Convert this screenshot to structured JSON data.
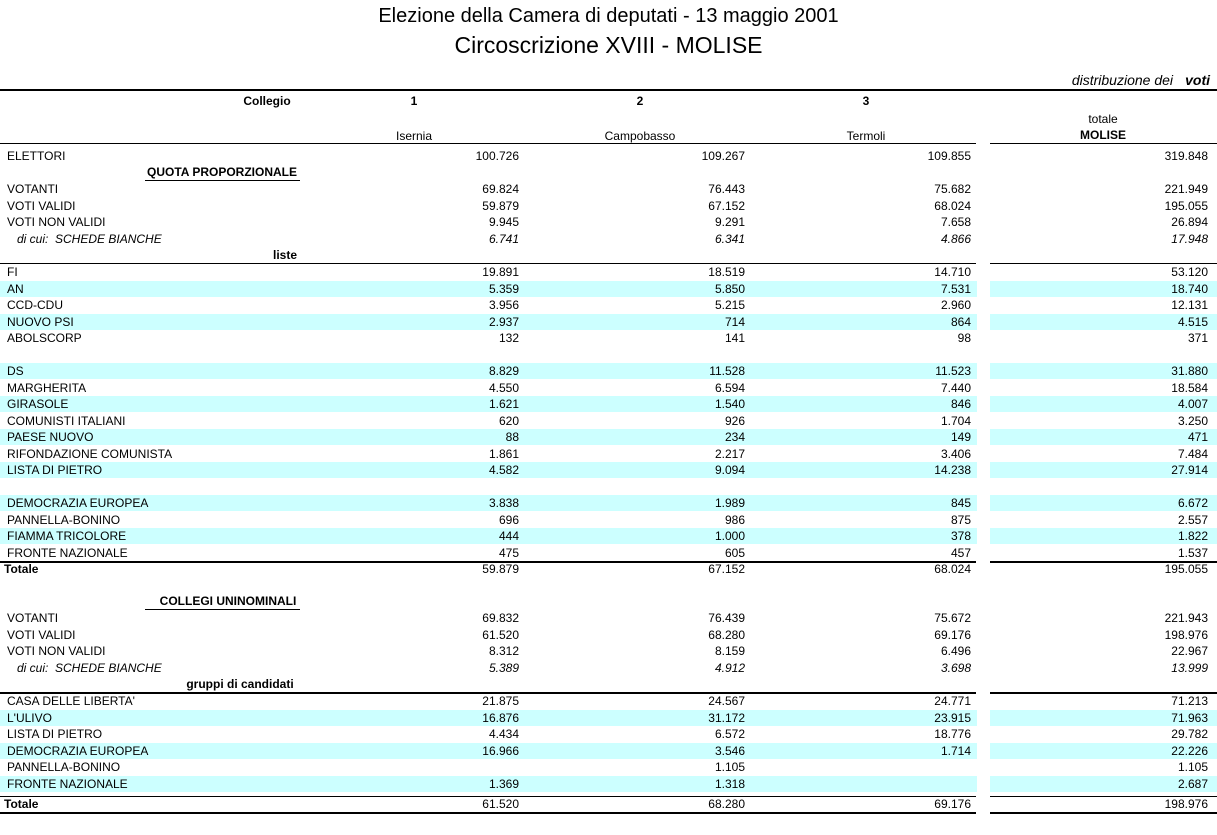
{
  "header": {
    "title": "Elezione della Camera di deputati  -  13 maggio 2001",
    "subtitle": "Circoscrizione XVIII - MOLISE",
    "note": "distribuzione dei",
    "note_unit": "voti"
  },
  "columns": {
    "label": "Collegio",
    "numbers": [
      "1",
      "2",
      "3"
    ],
    "names": [
      "Isernia",
      "Campobasso",
      "Termoli"
    ],
    "total_label": "totale",
    "total_name": "MOLISE"
  },
  "elettori": [
    "ELETTORI",
    "100.726",
    "109.267",
    "109.855",
    "319.848"
  ],
  "proporzionale": {
    "heading": "QUOTA PROPORZIONALE",
    "rows": [
      [
        "VOTANTI",
        "69.824",
        "76.443",
        "75.682",
        "221.949"
      ],
      [
        "VOTI VALIDI",
        "59.879",
        "67.152",
        "68.024",
        "195.055"
      ],
      [
        "VOTI NON VALIDI",
        "9.945",
        "9.291",
        "7.658",
        "26.894"
      ]
    ],
    "di_cui": [
      "di cui:  SCHEDE BIANCHE",
      "6.741",
      "6.341",
      "4.866",
      "17.948"
    ],
    "lists_heading": "liste",
    "lists": [
      [
        [
          "FI",
          "19.891",
          "18.519",
          "14.710",
          "53.120"
        ],
        [
          "AN",
          "5.359",
          "5.850",
          "7.531",
          "18.740"
        ],
        [
          "CCD-CDU",
          "3.956",
          "5.215",
          "2.960",
          "12.131"
        ],
        [
          "NUOVO PSI",
          "2.937",
          "714",
          "864",
          "4.515"
        ],
        [
          "ABOLSCORP",
          "132",
          "141",
          "98",
          "371"
        ]
      ],
      [
        [
          "DS",
          "8.829",
          "11.528",
          "11.523",
          "31.880"
        ],
        [
          "MARGHERITA",
          "4.550",
          "6.594",
          "7.440",
          "18.584"
        ],
        [
          "GIRASOLE",
          "1.621",
          "1.540",
          "846",
          "4.007"
        ],
        [
          "COMUNISTI ITALIANI",
          "620",
          "926",
          "1.704",
          "3.250"
        ],
        [
          "PAESE NUOVO",
          "88",
          "234",
          "149",
          "471"
        ],
        [
          "RIFONDAZIONE COMUNISTA",
          "1.861",
          "2.217",
          "3.406",
          "7.484"
        ],
        [
          "LISTA DI PIETRO",
          "4.582",
          "9.094",
          "14.238",
          "27.914"
        ]
      ],
      [
        [
          "DEMOCRAZIA EUROPEA",
          "3.838",
          "1.989",
          "845",
          "6.672"
        ],
        [
          "PANNELLA-BONINO",
          "696",
          "986",
          "875",
          "2.557"
        ],
        [
          "FIAMMA TRICOLORE",
          "444",
          "1.000",
          "378",
          "1.822"
        ],
        [
          "FRONTE NAZIONALE",
          "475",
          "605",
          "457",
          "1.537"
        ]
      ]
    ],
    "total": [
      "Totale",
      "59.879",
      "67.152",
      "68.024",
      "195.055"
    ]
  },
  "uninominale": {
    "heading": "COLLEGI UNINOMINALI",
    "rows": [
      [
        "VOTANTI",
        "69.832",
        "76.439",
        "75.672",
        "221.943"
      ],
      [
        "VOTI VALIDI",
        "61.520",
        "68.280",
        "69.176",
        "198.976"
      ],
      [
        "VOTI NON VALIDI",
        "8.312",
        "8.159",
        "6.496",
        "22.967"
      ]
    ],
    "di_cui": [
      "di cui:  SCHEDE BIANCHE",
      "5.389",
      "4.912",
      "3.698",
      "13.999"
    ],
    "lists_heading": "gruppi di candidati",
    "lists": [
      [
        [
          "CASA DELLE LIBERTA'",
          "21.875",
          "24.567",
          "24.771",
          "71.213"
        ],
        [
          "L'ULIVO",
          "16.876",
          "31.172",
          "23.915",
          "71.963"
        ],
        [
          "LISTA DI PIETRO",
          "4.434",
          "6.572",
          "18.776",
          "29.782"
        ],
        [
          "DEMOCRAZIA EUROPEA",
          "16.966",
          "3.546",
          "1.714",
          "22.226"
        ],
        [
          "PANNELLA-BONINO",
          null,
          "1.105",
          null,
          "1.105"
        ],
        [
          "FRONTE NAZIONALE",
          "1.369",
          "1.318",
          null,
          "2.687"
        ]
      ]
    ],
    "total": [
      "Totale",
      "61.520",
      "68.280",
      "69.176",
      "198.976"
    ]
  }
}
